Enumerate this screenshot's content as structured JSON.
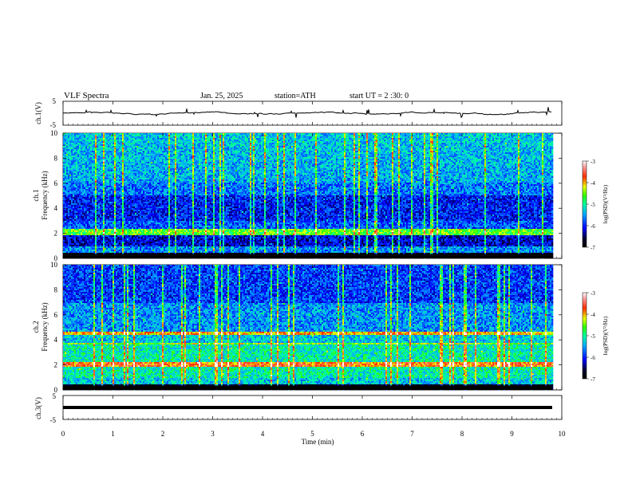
{
  "header": {
    "title": "VLF  Spectra",
    "date": "Jan. 25, 2025",
    "station": "station=ATH",
    "start": "start  UT  =   2  :30: 0"
  },
  "chart_data": {
    "type": "heatmap",
    "title": "VLF  Spectra",
    "xlabel": "Time  (min)",
    "xlim": [
      0,
      10
    ],
    "x_ticks": [
      "0",
      "1",
      "2",
      "3",
      "4",
      "5",
      "6",
      "7",
      "8",
      "9",
      "10"
    ],
    "panels": [
      {
        "type": "line",
        "ylabel": "ch.1(V)",
        "ylim": [
          -5,
          5
        ],
        "y_ticks": [
          "5",
          "-5"
        ]
      },
      {
        "type": "heatmap",
        "ylabel_line1": "ch.1",
        "ylabel_line2": "Frequency  (kHz)",
        "ylim": [
          0,
          10
        ],
        "y_ticks": [
          "10",
          "8",
          "6",
          "4",
          "2",
          "0"
        ],
        "colorbar_label": "log(PSD)(V²/Hz)",
        "colorbar_ticks": [
          "-3",
          "-4",
          "-5",
          "-6",
          "-7"
        ],
        "colorbar_range": [
          -7,
          -3
        ]
      },
      {
        "type": "heatmap",
        "ylabel_line1": "ch.2",
        "ylabel_line2": "Frequency  (kHz)",
        "ylim": [
          0,
          10
        ],
        "y_ticks": [
          "10",
          "8",
          "6",
          "4",
          "2",
          "0"
        ],
        "colorbar_label": "log(PSD)(V²/Hz)",
        "colorbar_ticks": [
          "-3",
          "-4",
          "-5",
          "-6",
          "-7"
        ],
        "colorbar_range": [
          -7,
          -3
        ]
      },
      {
        "type": "line",
        "ylabel": "ch.3(V)",
        "ylim": [
          -5,
          5
        ],
        "y_ticks": [
          "5",
          "-5"
        ]
      }
    ],
    "data_end_min": 9.8,
    "colors": {
      "low": "#000000",
      "mid_low": "#0018d8",
      "mid": "#18c8d0",
      "mid_high": "#d8e000",
      "high": "#ff0000"
    }
  }
}
